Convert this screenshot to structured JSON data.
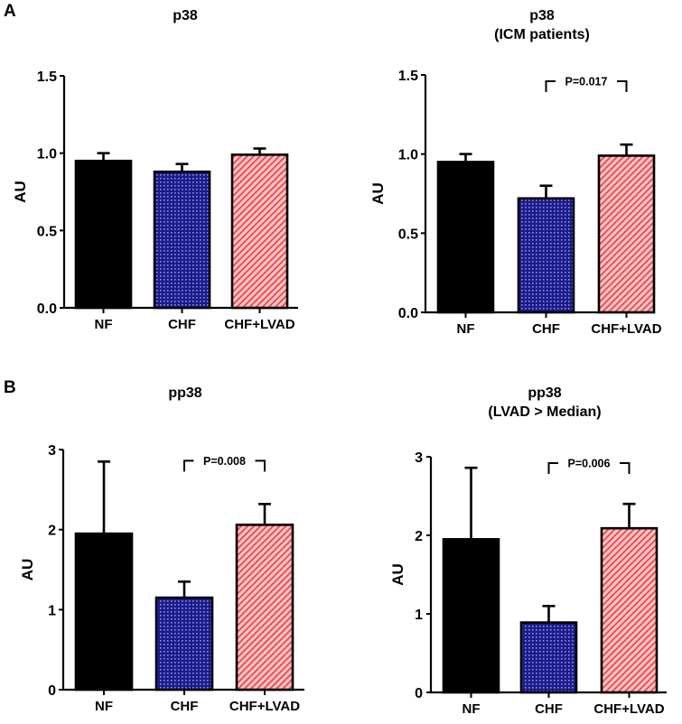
{
  "panel_labels": [
    "A",
    "B"
  ],
  "colors": {
    "NF": "#000000",
    "CHF": "#1c1c8c",
    "CHF_dots": "#8f8fe0",
    "CHF_LVAD": "#e8474f",
    "CHF_LVAD_stripes": "#ffc4c4",
    "axis": "#000000"
  },
  "chart_data": [
    {
      "type": "bar",
      "panel": "A",
      "title": "p38",
      "subtitle": "",
      "xlabel": "",
      "ylabel": "AU",
      "ylim": [
        0,
        1.5
      ],
      "yticks": [
        0,
        0.5,
        1.0,
        1.5
      ],
      "ytick_labels": [
        "0.0",
        "0.5",
        "1.0",
        "1.5"
      ],
      "categories": [
        "NF",
        "CHF",
        "CHF+LVAD"
      ],
      "values": [
        0.95,
        0.88,
        0.99
      ],
      "errors_upper": [
        0.05,
        0.05,
        0.04
      ],
      "significance": null,
      "grid": false
    },
    {
      "type": "bar",
      "panel": "A",
      "title": "p38",
      "subtitle": "(ICM patients)",
      "xlabel": "",
      "ylabel": "AU",
      "ylim": [
        0,
        1.5
      ],
      "yticks": [
        0,
        0.5,
        1.0,
        1.5
      ],
      "ytick_labels": [
        "0.0",
        "0.5",
        "1.0",
        "1.5"
      ],
      "categories": [
        "NF",
        "CHF",
        "CHF+LVAD"
      ],
      "values": [
        0.95,
        0.72,
        0.99
      ],
      "errors_upper": [
        0.05,
        0.08,
        0.07
      ],
      "significance": {
        "from": "CHF",
        "to": "CHF+LVAD",
        "label": "P=0.017",
        "y": 1.46
      },
      "grid": false
    },
    {
      "type": "bar",
      "panel": "B",
      "title": "pp38",
      "subtitle": "",
      "xlabel": "",
      "ylabel": "AU",
      "ylim": [
        0,
        3
      ],
      "yticks": [
        0,
        1,
        2,
        3
      ],
      "ytick_labels": [
        "0",
        "1",
        "2",
        "3"
      ],
      "categories": [
        "NF",
        "CHF",
        "CHF+LVAD"
      ],
      "values": [
        1.95,
        1.15,
        2.06
      ],
      "errors_upper": [
        0.9,
        0.2,
        0.26
      ],
      "significance": {
        "from": "CHF",
        "to": "CHF+LVAD",
        "label": "P=0.008",
        "y": 2.86
      },
      "grid": false
    },
    {
      "type": "bar",
      "panel": "B",
      "title": "pp38",
      "subtitle": "(LVAD > Median)",
      "xlabel": "",
      "ylabel": "AU",
      "ylim": [
        0,
        3
      ],
      "yticks": [
        0,
        1,
        2,
        3
      ],
      "ytick_labels": [
        "0",
        "1",
        "2",
        "3"
      ],
      "categories": [
        "NF",
        "CHF",
        "CHF+LVAD"
      ],
      "values": [
        1.95,
        0.89,
        2.09
      ],
      "errors_upper": [
        0.91,
        0.21,
        0.31
      ],
      "significance": {
        "from": "CHF",
        "to": "CHF+LVAD",
        "label": "P=0.006",
        "y": 2.92
      },
      "grid": false
    }
  ]
}
